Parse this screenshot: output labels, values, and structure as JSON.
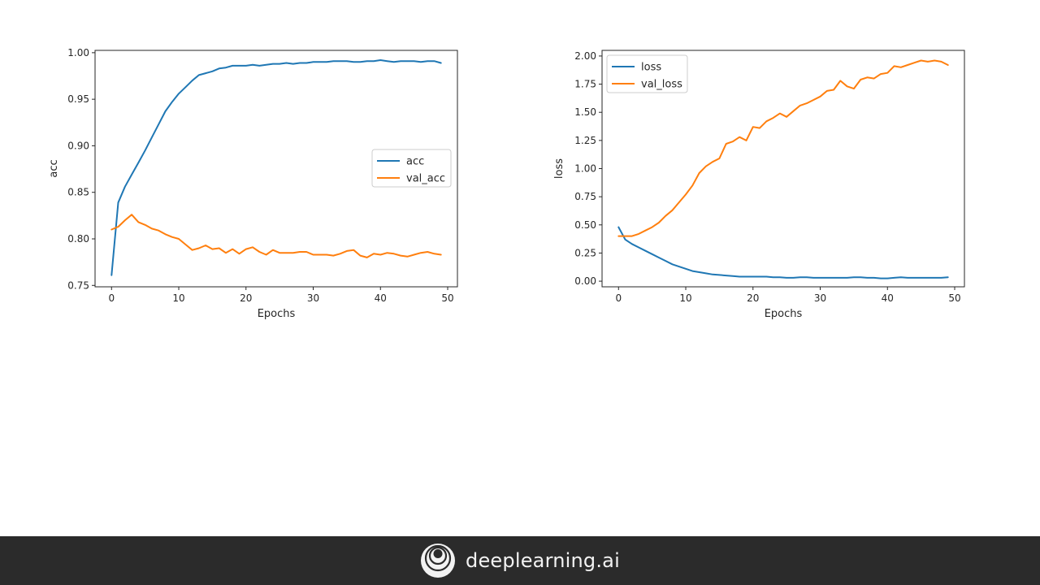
{
  "chart_data": [
    {
      "type": "line",
      "xlabel": "Epochs",
      "ylabel": "acc",
      "xlim": [
        -2.45,
        51.45
      ],
      "ylim": [
        0.7485,
        1.0025
      ],
      "xticks": [
        0,
        10,
        20,
        30,
        40,
        50
      ],
      "yticks": [
        0.75,
        0.8,
        0.85,
        0.9,
        0.95,
        1.0
      ],
      "ytick_labels": [
        "0.75",
        "0.80",
        "0.85",
        "0.90",
        "0.95",
        "1.00"
      ],
      "legend_placement": "center-right",
      "x": [
        0,
        1,
        2,
        3,
        4,
        5,
        6,
        7,
        8,
        9,
        10,
        11,
        12,
        13,
        14,
        15,
        16,
        17,
        18,
        19,
        20,
        21,
        22,
        23,
        24,
        25,
        26,
        27,
        28,
        29,
        30,
        31,
        32,
        33,
        34,
        35,
        36,
        37,
        38,
        39,
        40,
        41,
        42,
        43,
        44,
        45,
        46,
        47,
        48,
        49
      ],
      "series": [
        {
          "name": "acc",
          "color": "#1f77b4",
          "values": [
            0.761,
            0.839,
            0.856,
            0.869,
            0.882,
            0.895,
            0.909,
            0.923,
            0.937,
            0.947,
            0.956,
            0.963,
            0.97,
            0.976,
            0.978,
            0.98,
            0.983,
            0.984,
            0.986,
            0.986,
            0.986,
            0.987,
            0.986,
            0.987,
            0.988,
            0.988,
            0.989,
            0.988,
            0.989,
            0.989,
            0.99,
            0.99,
            0.99,
            0.991,
            0.991,
            0.991,
            0.99,
            0.99,
            0.991,
            0.991,
            0.992,
            0.991,
            0.99,
            0.991,
            0.991,
            0.991,
            0.99,
            0.991,
            0.991,
            0.989
          ]
        },
        {
          "name": "val_acc",
          "color": "#ff7f0e",
          "values": [
            0.81,
            0.813,
            0.82,
            0.826,
            0.818,
            0.815,
            0.811,
            0.809,
            0.805,
            0.802,
            0.8,
            0.794,
            0.788,
            0.79,
            0.793,
            0.789,
            0.79,
            0.785,
            0.789,
            0.784,
            0.789,
            0.791,
            0.786,
            0.783,
            0.788,
            0.785,
            0.785,
            0.785,
            0.786,
            0.786,
            0.783,
            0.783,
            0.783,
            0.782,
            0.784,
            0.787,
            0.788,
            0.782,
            0.78,
            0.784,
            0.783,
            0.785,
            0.784,
            0.782,
            0.781,
            0.783,
            0.785,
            0.786,
            0.784,
            0.783
          ]
        }
      ]
    },
    {
      "type": "line",
      "xlabel": "Epochs",
      "ylabel": "loss",
      "xlim": [
        -2.45,
        51.45
      ],
      "ylim": [
        -0.05,
        2.05
      ],
      "xticks": [
        0,
        10,
        20,
        30,
        40,
        50
      ],
      "yticks": [
        0.0,
        0.25,
        0.5,
        0.75,
        1.0,
        1.25,
        1.5,
        1.75,
        2.0
      ],
      "ytick_labels": [
        "0.00",
        "0.25",
        "0.50",
        "0.75",
        "1.00",
        "1.25",
        "1.50",
        "1.75",
        "2.00"
      ],
      "legend_placement": "top-left",
      "x": [
        0,
        1,
        2,
        3,
        4,
        5,
        6,
        7,
        8,
        9,
        10,
        11,
        12,
        13,
        14,
        15,
        16,
        17,
        18,
        19,
        20,
        21,
        22,
        23,
        24,
        25,
        26,
        27,
        28,
        29,
        30,
        31,
        32,
        33,
        34,
        35,
        36,
        37,
        38,
        39,
        40,
        41,
        42,
        43,
        44,
        45,
        46,
        47,
        48,
        49
      ],
      "series": [
        {
          "name": "loss",
          "color": "#1f77b4",
          "values": [
            0.48,
            0.37,
            0.33,
            0.3,
            0.27,
            0.24,
            0.21,
            0.18,
            0.15,
            0.13,
            0.11,
            0.09,
            0.08,
            0.07,
            0.06,
            0.055,
            0.05,
            0.045,
            0.04,
            0.04,
            0.04,
            0.04,
            0.04,
            0.035,
            0.035,
            0.03,
            0.03,
            0.035,
            0.035,
            0.03,
            0.03,
            0.03,
            0.03,
            0.03,
            0.03,
            0.035,
            0.035,
            0.03,
            0.03,
            0.025,
            0.025,
            0.03,
            0.035,
            0.03,
            0.03,
            0.03,
            0.03,
            0.03,
            0.03,
            0.035
          ]
        },
        {
          "name": "val_loss",
          "color": "#ff7f0e",
          "values": [
            0.4,
            0.4,
            0.4,
            0.42,
            0.45,
            0.48,
            0.52,
            0.58,
            0.63,
            0.7,
            0.77,
            0.85,
            0.96,
            1.02,
            1.06,
            1.09,
            1.22,
            1.24,
            1.28,
            1.25,
            1.37,
            1.36,
            1.42,
            1.45,
            1.49,
            1.46,
            1.51,
            1.56,
            1.58,
            1.61,
            1.64,
            1.69,
            1.7,
            1.78,
            1.73,
            1.71,
            1.79,
            1.81,
            1.8,
            1.84,
            1.85,
            1.91,
            1.9,
            1.92,
            1.94,
            1.96,
            1.95,
            1.96,
            1.95,
            1.92
          ]
        }
      ]
    }
  ],
  "footer": {
    "brand_name": "deeplearning.ai",
    "logo_icon": "deeplearning-logo-icon"
  }
}
